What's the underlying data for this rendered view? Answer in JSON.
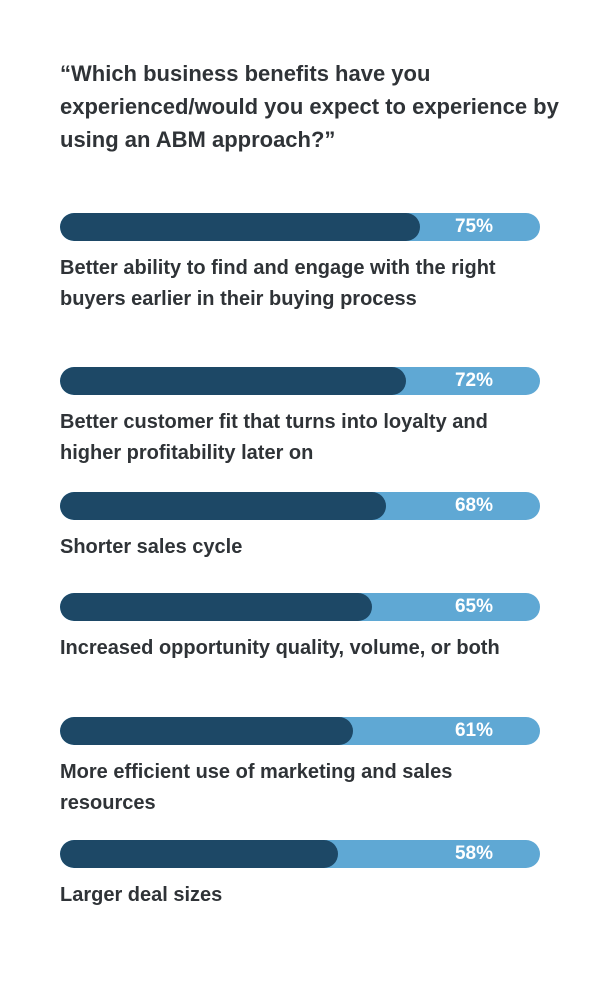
{
  "chart_data": {
    "type": "bar",
    "orientation": "horizontal",
    "title": "“Which business benefits have you experienced/would you expect to experience by using an ABM approach?”",
    "unit": "%",
    "xlim": [
      0,
      100
    ],
    "colors": {
      "fill": "#1d4866",
      "track": "#5fa8d4",
      "value_text": "#ffffff",
      "label_text": "#2f3337"
    },
    "categories": [
      "Better ability to find and engage with the right buyers earlier in their buying process",
      "Better customer fit that turns into loyalty and higher profitability later on",
      "Shorter sales cycle",
      "Increased opportunity quality, volume, or both",
      "More efficient use of marketing and sales resources",
      "Larger deal sizes"
    ],
    "values": [
      75,
      72,
      68,
      65,
      61,
      58
    ],
    "value_labels": [
      "75%",
      "72%",
      "68%",
      "65%",
      "61%",
      "58%"
    ]
  }
}
